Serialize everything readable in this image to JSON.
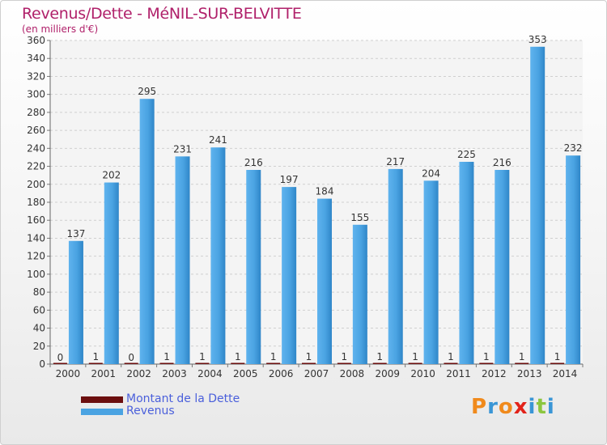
{
  "header": {
    "title": "Revenus/Dette - MéNIL-SUR-BELVITTE",
    "subtitle": "(en milliers d'€)"
  },
  "legend": {
    "items": [
      {
        "label": "Montant de la Dette",
        "color": "#6b0e0e"
      },
      {
        "label": "Revenus",
        "color": "#4aa3e2"
      }
    ]
  },
  "logo": {
    "letters": [
      {
        "ch": "P",
        "color": "#f08a1c"
      },
      {
        "ch": "r",
        "color": "#3a96d6"
      },
      {
        "ch": "o",
        "color": "#f08a1c"
      },
      {
        "ch": "x",
        "color": "#e2231a"
      },
      {
        "ch": "i",
        "color": "#3a96d6"
      },
      {
        "ch": "t",
        "color": "#8cc63f"
      },
      {
        "ch": "i",
        "color": "#3a96d6"
      }
    ]
  },
  "chart_data": {
    "type": "bar",
    "categories": [
      "2000",
      "2001",
      "2002",
      "2003",
      "2004",
      "2005",
      "2006",
      "2007",
      "2008",
      "2009",
      "2010",
      "2011",
      "2012",
      "2013",
      "2014"
    ],
    "series": [
      {
        "name": "Montant de la Dette",
        "color": "#6b0e0e",
        "values": [
          0,
          1,
          0,
          1,
          1,
          1,
          1,
          1,
          1,
          1,
          1,
          1,
          1,
          1,
          1
        ]
      },
      {
        "name": "Revenus",
        "color": "#4aa3e2",
        "values": [
          137,
          202,
          295,
          231,
          241,
          216,
          197,
          184,
          155,
          217,
          204,
          225,
          216,
          353,
          232
        ]
      }
    ],
    "ylim": [
      0,
      360
    ],
    "yticks": [
      0,
      20,
      40,
      60,
      80,
      100,
      120,
      140,
      160,
      180,
      200,
      220,
      240,
      260,
      280,
      300,
      320,
      340,
      360
    ],
    "grid": true
  }
}
